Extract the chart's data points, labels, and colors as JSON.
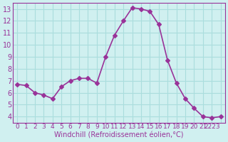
{
  "x": [
    0,
    1,
    2,
    3,
    4,
    5,
    6,
    7,
    8,
    9,
    10,
    11,
    12,
    13,
    14,
    15,
    16,
    17,
    18,
    19,
    20,
    21,
    22,
    23
  ],
  "y": [
    6.7,
    6.6,
    6.0,
    5.8,
    5.5,
    6.5,
    7.0,
    7.2,
    7.2,
    6.8,
    9.0,
    10.8,
    12.0,
    13.1,
    13.0,
    12.8,
    11.7,
    8.7,
    6.8,
    5.5,
    4.7,
    4.0,
    3.9,
    4.0
  ],
  "line_color": "#993399",
  "marker": "D",
  "marker_size": 3,
  "bg_color": "#d0f0f0",
  "grid_color": "#aadddd",
  "xlabel": "Windchill (Refroidissement éolien,°C)",
  "xlabel_color": "#993399",
  "tick_color": "#993399",
  "ylim": [
    3.5,
    13.5
  ],
  "xlim": [
    -0.5,
    23.5
  ],
  "yticks": [
    4,
    5,
    6,
    7,
    8,
    9,
    10,
    11,
    12,
    13
  ],
  "xticks": [
    0,
    1,
    2,
    3,
    4,
    5,
    6,
    7,
    8,
    9,
    10,
    11,
    12,
    13,
    14,
    15,
    16,
    17,
    18,
    19,
    20,
    21,
    22,
    23
  ],
  "xtick_labels": [
    "0",
    "1",
    "2",
    "3",
    "4",
    "5",
    "6",
    "7",
    "8",
    "9",
    "10",
    "11",
    "12",
    "13",
    "14",
    "15",
    "16",
    "17",
    "18",
    "19",
    "20",
    "21",
    "2223",
    ""
  ],
  "line_width": 1.2,
  "font_size": 7
}
